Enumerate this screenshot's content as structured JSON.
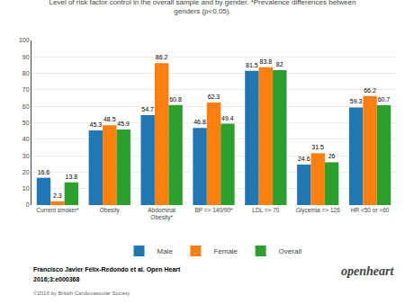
{
  "chart_data": {
    "type": "bar",
    "title": "Level of risk factor control in the overall sample and by gender. *Prevalence differences between\ngenders (p<0.05).",
    "categories": [
      "Current smoker*",
      "Obesity",
      "Abdominal\nObesity*",
      "BP => 140/90*",
      "LDL => 70",
      "Glycemia => 126",
      "HR <50 or >60"
    ],
    "series": [
      {
        "name": "Male",
        "values": [
          16.6,
          45.3,
          54.7,
          46.8,
          81.5,
          24.6,
          59.3
        ]
      },
      {
        "name": "Female",
        "values": [
          2.3,
          48.5,
          86.2,
          62.3,
          83.8,
          31.5,
          66.2
        ]
      },
      {
        "name": "Overall",
        "values": [
          13.8,
          45.9,
          60.8,
          49.4,
          82,
          26,
          60.7
        ]
      }
    ],
    "ylim": [
      0,
      100
    ],
    "yticks": [
      0,
      10,
      20,
      30,
      40,
      50,
      60,
      70,
      80,
      90,
      100
    ],
    "grid": true,
    "legend": "bottom",
    "data_labels": true,
    "annotations": [
      "Francisco Javier Félix-Redondo et al. Open Heart",
      "2016;3:e000368",
      "©2016 by British Cardiovascular Society",
      "openheart"
    ]
  }
}
